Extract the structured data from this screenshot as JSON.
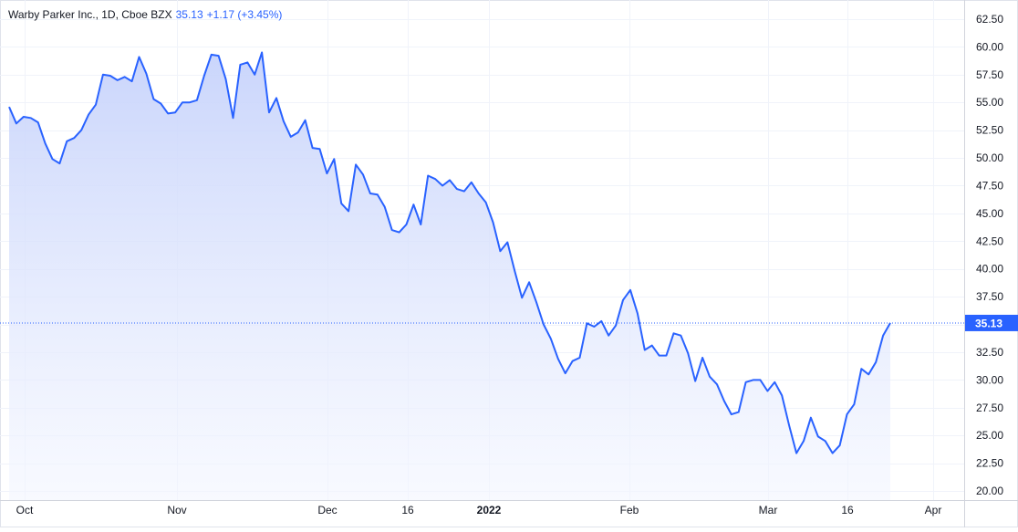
{
  "legend": {
    "symbol": "Warby Parker Inc., 1D, Cboe BZX",
    "last": "35.13",
    "change": "+1.17 (+3.45%)"
  },
  "colors": {
    "line": "#2962ff",
    "area_top": "#c7d3fb",
    "area_bottom": "#f3f6ff",
    "grid": "#f0f3fa",
    "axis_text": "#131722",
    "price_tag_bg": "#2962ff",
    "price_tag_text": "#ffffff"
  },
  "chart_data": {
    "type": "area",
    "title": "Warby Parker Inc., 1D, Cboe BZX",
    "x_tick_labels": [
      "Oct",
      "Nov",
      "Dec",
      "16",
      "2022",
      "Feb",
      "Mar",
      "16",
      "Apr"
    ],
    "y_tick_labels": [
      "20.00",
      "22.50",
      "25.00",
      "27.50",
      "30.00",
      "32.50",
      "35.00",
      "37.50",
      "40.00",
      "42.50",
      "45.00",
      "47.50",
      "50.00",
      "52.50",
      "55.00",
      "57.50",
      "60.00",
      "62.50"
    ],
    "ylim": [
      20,
      62.5
    ],
    "last_price_label": "35.13",
    "grid": true,
    "series": [
      {
        "values": [
          54.6,
          53.1,
          53.7,
          53.6,
          53.2,
          51.3,
          49.9,
          49.5,
          51.5,
          51.8,
          52.5,
          53.9,
          54.8,
          57.5,
          57.4,
          57.0,
          57.3,
          56.9,
          59.1,
          57.6,
          55.3,
          54.9,
          54.0,
          54.1,
          55.0,
          55.0,
          55.2,
          57.4,
          59.3,
          59.2,
          57.1,
          53.6,
          58.4,
          58.6,
          57.5,
          59.5,
          54.1,
          55.4,
          53.3,
          51.9,
          52.3,
          53.4,
          50.9,
          50.8,
          48.6,
          49.9,
          45.9,
          45.2,
          49.4,
          48.5,
          46.8,
          46.7,
          45.6,
          43.5,
          43.3,
          44.0,
          45.8,
          44.0,
          48.4,
          48.1,
          47.5,
          48.0,
          47.2,
          47.0,
          47.8,
          46.8,
          46.0,
          44.2,
          41.6,
          42.4,
          39.8,
          37.4,
          38.8,
          37.0,
          35.0,
          33.7,
          31.9,
          30.6,
          31.7,
          32.0,
          35.1,
          34.8,
          35.3,
          34.0,
          34.9,
          37.2,
          38.1,
          36.0,
          32.7,
          33.1,
          32.2,
          32.2,
          34.2,
          34.0,
          32.4,
          29.9,
          32.0,
          30.3,
          29.6,
          28.1,
          26.9,
          27.1,
          29.8,
          30.0,
          30.0,
          29.0,
          29.8,
          28.6,
          25.9,
          23.4,
          24.5,
          26.6,
          24.9,
          24.5,
          23.4,
          24.1,
          26.9,
          27.8,
          31.0,
          30.5,
          31.6,
          34.0,
          35.13
        ]
      }
    ]
  }
}
